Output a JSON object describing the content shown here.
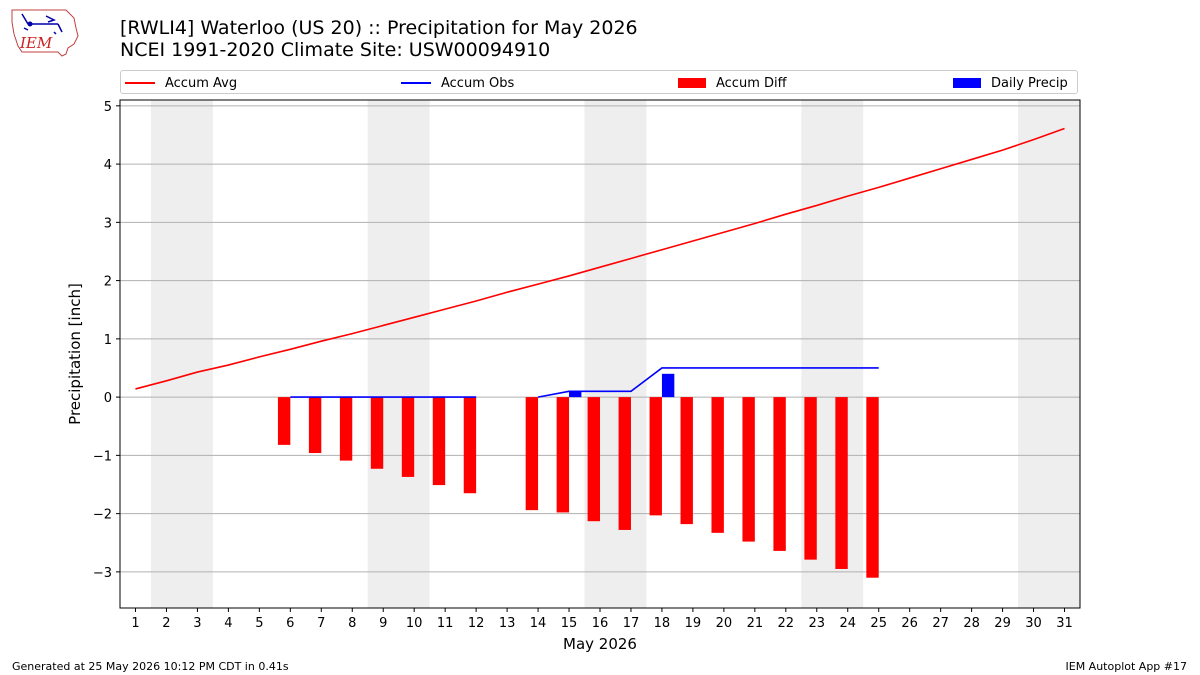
{
  "header": {
    "title_line1": "[RWLI4] Waterloo (US 20) :: Precipitation for May 2026",
    "title_line2": "NCEI 1991-2020 Climate Site: USW00094910",
    "logo_text": "IEM"
  },
  "footer": {
    "generated": "Generated at 25 May 2026 10:12 PM CDT in 0.41s",
    "app": "IEM Autoplot App #17"
  },
  "colors": {
    "accum_avg": "#ff0000",
    "accum_obs": "#0000ff",
    "accum_diff": "#ff0000",
    "daily_precip": "#0000ff",
    "weekend_shade": "#eeeeee",
    "grid": "#b0b0b0"
  },
  "chart_data": {
    "type": "bar",
    "title": "[RWLI4] Waterloo (US 20) :: Precipitation for May 2026",
    "subtitle": "NCEI 1991-2020 Climate Site: USW00094910",
    "xlabel": "May 2026",
    "ylabel": "Precipitation [inch]",
    "xlim": [
      0.5,
      31.5
    ],
    "ylim": [
      -3.62,
      5.1
    ],
    "x_ticks": [
      1,
      2,
      3,
      4,
      5,
      6,
      7,
      8,
      9,
      10,
      11,
      12,
      13,
      14,
      15,
      16,
      17,
      18,
      19,
      20,
      21,
      22,
      23,
      24,
      25,
      26,
      27,
      28,
      29,
      30,
      31
    ],
    "y_ticks": [
      -3,
      -2,
      -1,
      0,
      1,
      2,
      3,
      4,
      5
    ],
    "grid": "horizontal",
    "legend_position": "top",
    "shaded_day_ranges": [
      [
        2,
        3
      ],
      [
        9,
        10
      ],
      [
        16,
        17
      ],
      [
        23,
        24
      ],
      [
        30,
        31
      ]
    ],
    "series": [
      {
        "name": "Accum Avg",
        "type": "line",
        "x": [
          1,
          2,
          3,
          4,
          5,
          6,
          7,
          8,
          9,
          10,
          11,
          12,
          13,
          14,
          15,
          16,
          17,
          18,
          19,
          20,
          21,
          22,
          23,
          24,
          25,
          26,
          27,
          28,
          29,
          30,
          31
        ],
        "values": [
          0.14,
          0.28,
          0.43,
          0.55,
          0.69,
          0.82,
          0.96,
          1.09,
          1.23,
          1.37,
          1.51,
          1.65,
          1.8,
          1.94,
          2.08,
          2.23,
          2.38,
          2.53,
          2.68,
          2.83,
          2.98,
          3.14,
          3.29,
          3.45,
          3.6,
          3.76,
          3.92,
          4.08,
          4.24,
          4.42,
          4.61
        ]
      },
      {
        "name": "Accum Obs",
        "type": "line",
        "segments": [
          {
            "x": [
              6,
              7,
              8,
              9,
              10,
              11,
              12
            ],
            "values": [
              0,
              0,
              0,
              0,
              0,
              0,
              0
            ]
          },
          {
            "x": [
              14,
              15,
              16,
              17,
              18,
              19,
              20,
              21,
              22,
              23,
              24,
              25
            ],
            "values": [
              0,
              0.1,
              0.1,
              0.1,
              0.5,
              0.5,
              0.5,
              0.5,
              0.5,
              0.5,
              0.5,
              0.5
            ]
          }
        ]
      },
      {
        "name": "Accum Diff",
        "type": "bar",
        "x": [
          6,
          7,
          8,
          9,
          10,
          11,
          12,
          14,
          15,
          16,
          17,
          18,
          19,
          20,
          21,
          22,
          23,
          24,
          25
        ],
        "values": [
          -0.82,
          -0.96,
          -1.09,
          -1.23,
          -1.37,
          -1.51,
          -1.65,
          -1.94,
          -1.98,
          -2.13,
          -2.28,
          -2.03,
          -2.18,
          -2.33,
          -2.48,
          -2.64,
          -2.79,
          -2.95,
          -3.1
        ]
      },
      {
        "name": "Daily Precip",
        "type": "bar",
        "x": [
          15,
          18
        ],
        "values": [
          0.1,
          0.4
        ]
      }
    ]
  }
}
